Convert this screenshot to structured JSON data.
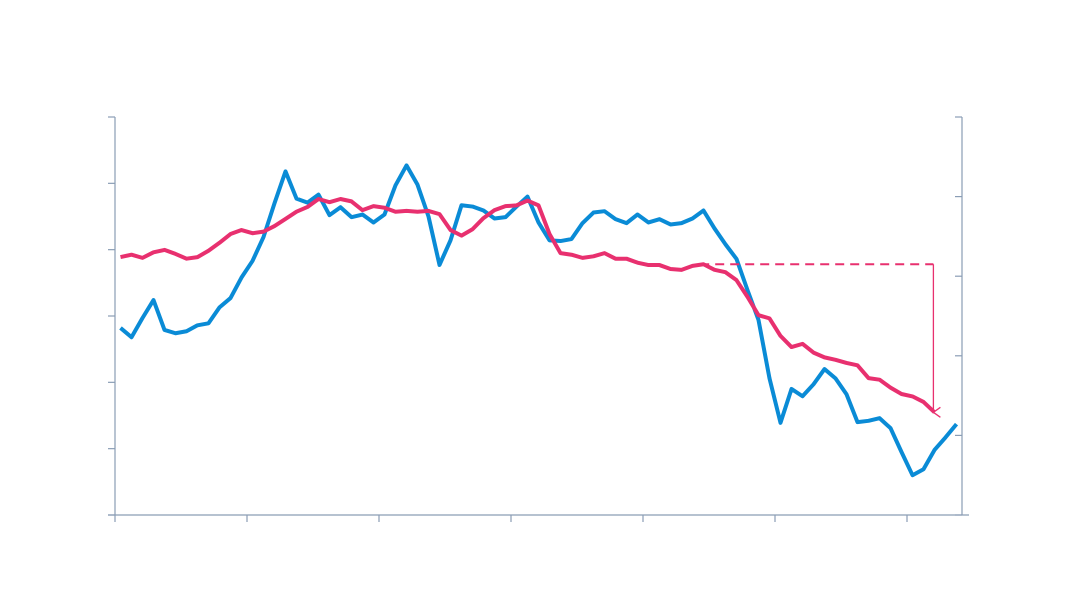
{
  "chart_data": {
    "type": "line",
    "x": [
      0.5,
      1.5,
      2.5,
      3.5,
      4.5,
      5.5,
      6.5,
      7.5,
      8.5,
      9.5,
      10.5,
      11.5,
      12.5,
      13.5,
      14.5,
      15.5,
      16.5,
      17.5,
      18.5,
      19.5,
      20.5,
      21.5,
      22.5,
      23.5,
      24.5,
      25.5,
      26.5,
      27.5,
      28.5,
      29.5,
      30.5,
      31.5,
      32.5,
      33.5,
      34.5,
      35.5,
      36.5,
      37.5,
      38.5,
      39.5,
      40.5,
      41.5,
      42.5,
      43.5,
      44.5,
      45.5,
      46.5,
      47.5,
      48.5,
      49.5,
      50.5,
      51.5,
      52.5,
      53.5,
      54.5,
      55.5,
      56.5,
      57.5,
      58.5,
      59.5,
      60.5,
      61.5,
      62.5,
      63.5,
      64.5,
      65.5,
      66.5,
      67.5,
      68.5,
      69.5,
      70.5,
      71.5,
      72.5,
      73.5,
      74.5,
      75.5,
      76.5
    ],
    "xlim": [
      0,
      77
    ],
    "xticks": [
      0,
      12,
      24,
      36,
      48,
      60,
      72
    ],
    "ylim": [
      0,
      6
    ],
    "yticks": [
      0,
      1,
      2,
      3,
      4,
      5,
      6
    ],
    "y2lim": [
      0,
      5
    ],
    "y2ticks": [
      0,
      1,
      2,
      3,
      4,
      5
    ],
    "grid": false,
    "series": [
      {
        "color": "#0a8bd6",
        "axis": "y",
        "values": [
          2.82,
          2.68,
          2.97,
          3.24,
          2.79,
          2.74,
          2.77,
          2.86,
          2.89,
          3.13,
          3.27,
          3.58,
          3.83,
          4.19,
          4.7,
          5.18,
          4.77,
          4.71,
          4.83,
          4.52,
          4.64,
          4.49,
          4.53,
          4.41,
          4.53,
          4.97,
          5.27,
          4.98,
          4.5,
          3.77,
          4.14,
          4.67,
          4.65,
          4.59,
          4.47,
          4.49,
          4.65,
          4.8,
          4.41,
          4.14,
          4.13,
          4.16,
          4.4,
          4.56,
          4.58,
          4.46,
          4.4,
          4.53,
          4.41,
          4.46,
          4.38,
          4.4,
          4.47,
          4.59,
          4.32,
          4.08,
          3.86,
          3.39,
          2.94,
          2.06,
          1.39,
          1.9,
          1.79,
          1.97,
          2.2,
          2.06,
          1.82,
          1.4,
          1.42,
          1.46,
          1.31,
          0.95,
          0.6,
          0.69,
          0.98,
          1.17,
          1.37
        ]
      },
      {
        "color": "#e8306f",
        "axis": "y2",
        "values": [
          3.24,
          3.27,
          3.23,
          3.3,
          3.33,
          3.28,
          3.22,
          3.24,
          3.32,
          3.42,
          3.53,
          3.58,
          3.54,
          3.56,
          3.63,
          3.72,
          3.81,
          3.87,
          3.97,
          3.93,
          3.97,
          3.94,
          3.83,
          3.88,
          3.86,
          3.81,
          3.82,
          3.81,
          3.82,
          3.78,
          3.58,
          3.51,
          3.59,
          3.73,
          3.83,
          3.88,
          3.89,
          3.95,
          3.89,
          3.53,
          3.29,
          3.27,
          3.23,
          3.25,
          3.29,
          3.22,
          3.22,
          3.17,
          3.14,
          3.14,
          3.09,
          3.08,
          3.13,
          3.15,
          3.08,
          3.05,
          2.95,
          2.74,
          2.51,
          2.47,
          2.25,
          2.11,
          2.15,
          2.04,
          1.98,
          1.95,
          1.91,
          1.88,
          1.72,
          1.7,
          1.6,
          1.52,
          1.49,
          1.42,
          1.29,
          null,
          null
        ]
      }
    ],
    "annotation": {
      "type": "arrow",
      "color": "#e8306f",
      "axis": "y2",
      "x_start": 53.2,
      "x_end": 74.4,
      "y_from": 3.15,
      "y_to": 1.29
    }
  }
}
